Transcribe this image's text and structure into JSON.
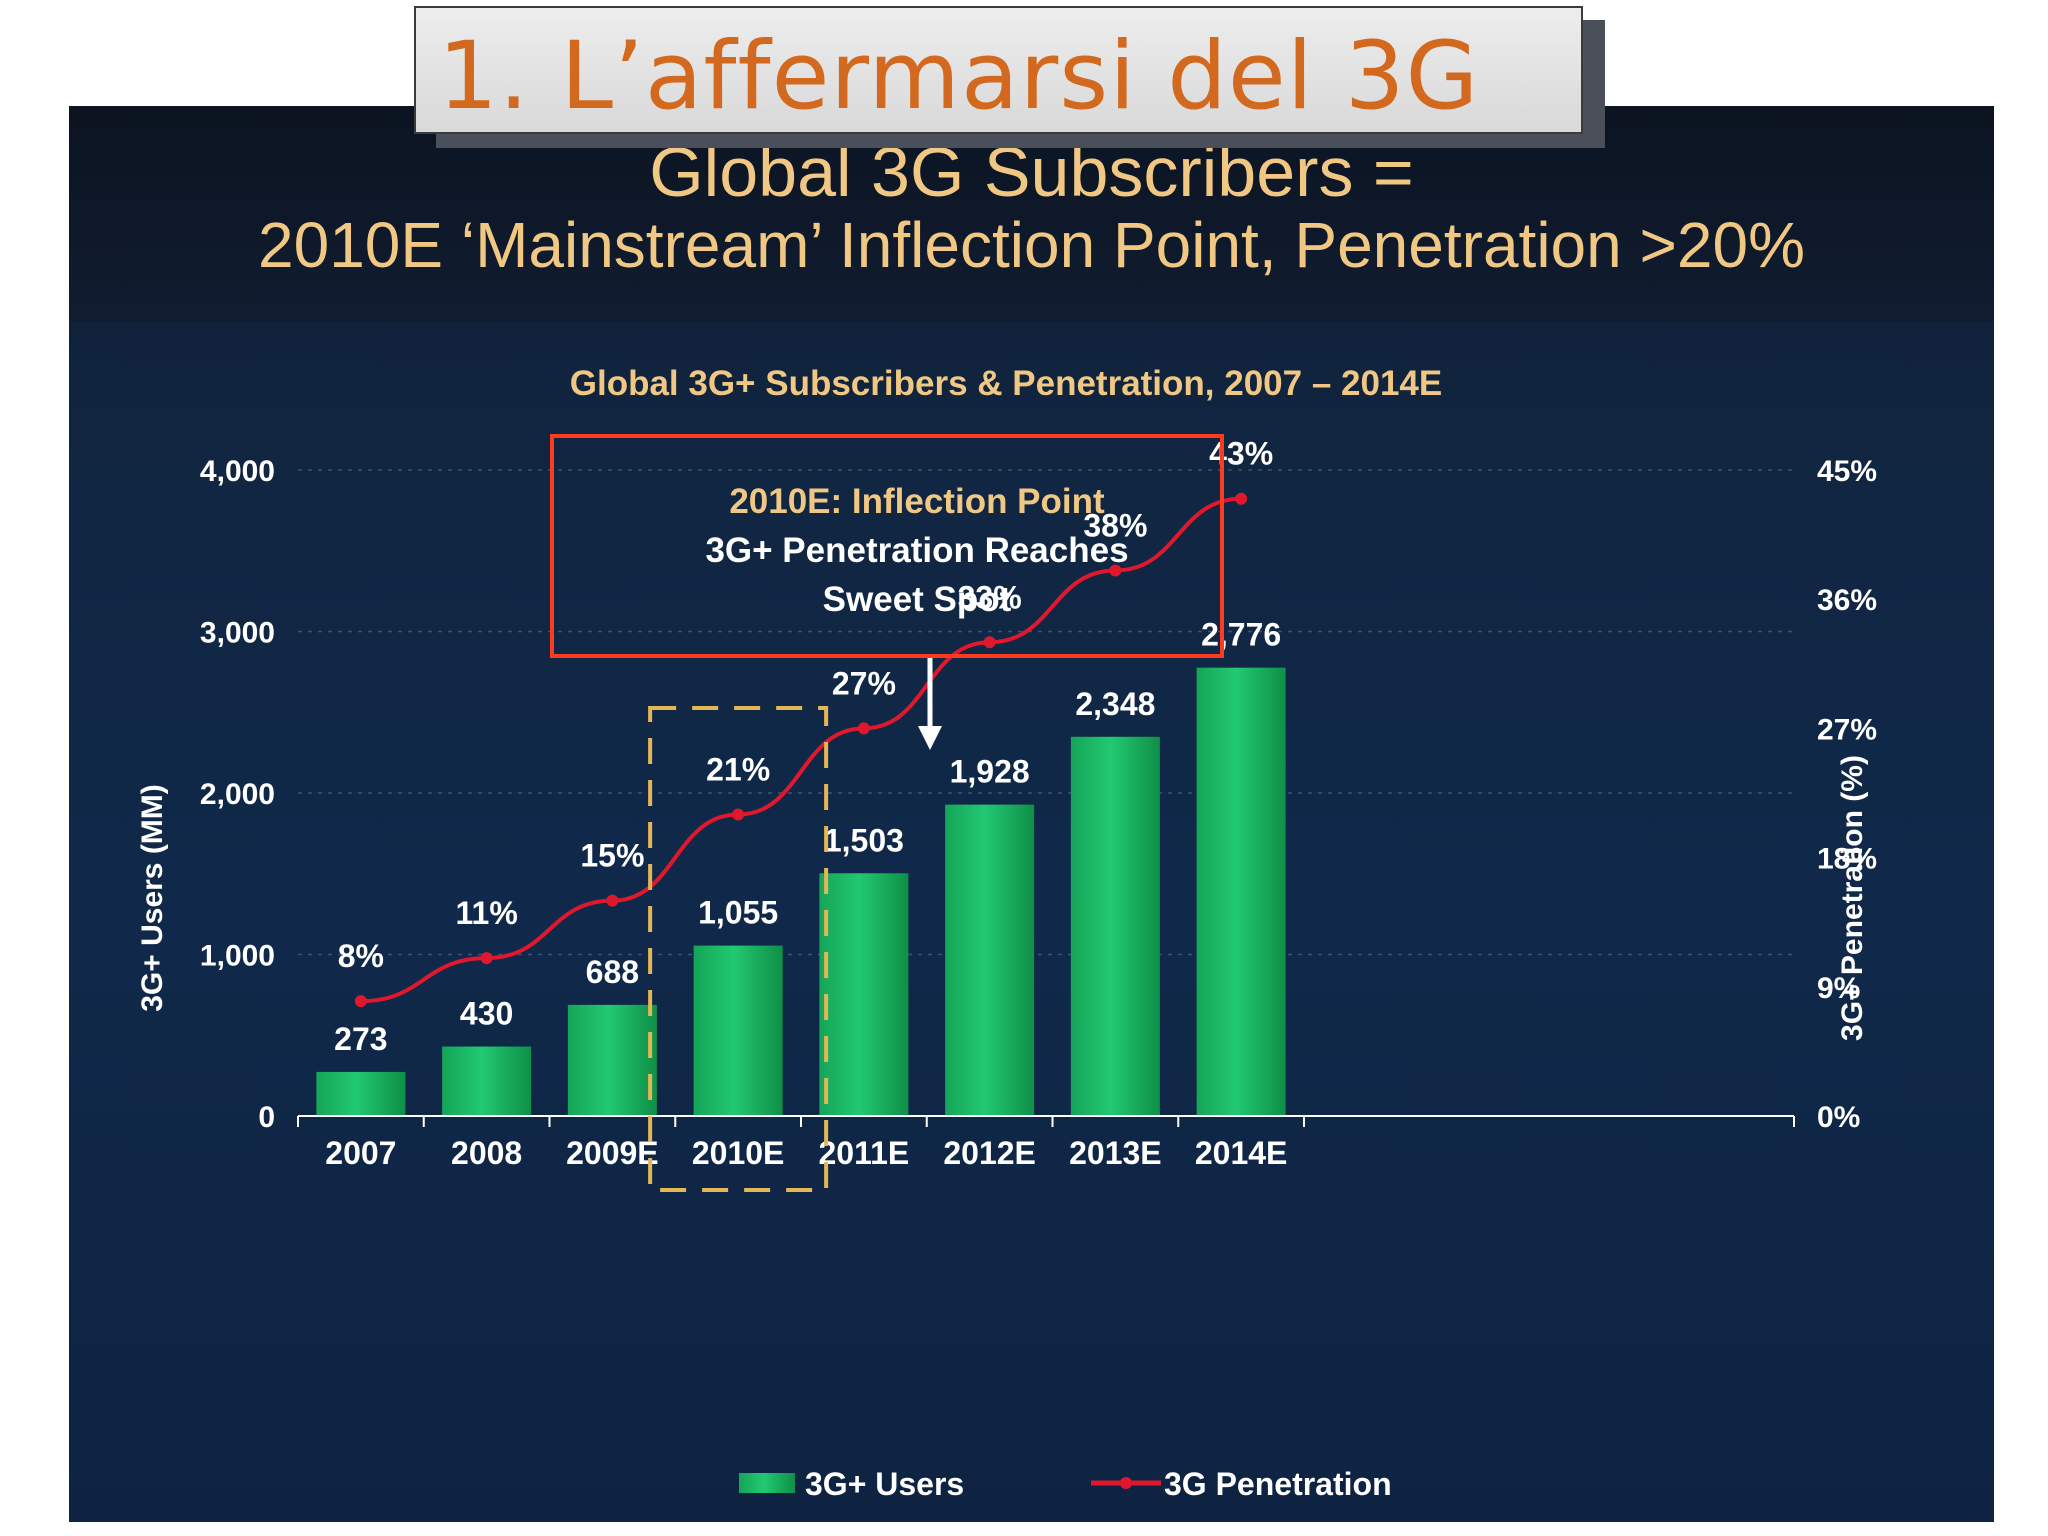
{
  "slide_title": "1. L’affermarsi del 3G",
  "headline": {
    "line1": "Global 3G Subscribers =",
    "line2": "2010E ‘Mainstream’ Inflection Point, Penetration >20%"
  },
  "callout": {
    "line1": "2010E: Inflection Point",
    "line2": "3G+ Penetration Reaches",
    "line3": "Sweet Spot"
  },
  "colors": {
    "bar": "#1fb866",
    "line": "#e0182d",
    "title_text": "#f1c883",
    "callout_border": "#ff3b1f",
    "highlight_dash": "#e6b654",
    "slide_title": "#d2691e"
  },
  "chart_data": {
    "type": "bar",
    "title": "Global 3G+ Subscribers & Penetration, 2007 – 2014E",
    "categories": [
      "2007",
      "2008",
      "2009E",
      "2010E",
      "2011E",
      "2012E",
      "2013E",
      "2014E"
    ],
    "series": [
      {
        "name": "3G+ Users",
        "type": "bar",
        "axis": "left",
        "values": [
          273,
          430,
          688,
          1055,
          1503,
          1928,
          2348,
          2776
        ],
        "labels": [
          "273",
          "430",
          "688",
          "1,055",
          "1,503",
          "1,928",
          "2,348",
          "2,776"
        ]
      },
      {
        "name": "3G Penetration",
        "type": "line",
        "axis": "right",
        "values": [
          8,
          11,
          15,
          21,
          27,
          33,
          38,
          43
        ],
        "labels": [
          "8%",
          "11%",
          "15%",
          "21%",
          "27%",
          "33%",
          "38%",
          "43%"
        ]
      }
    ],
    "ylabel": "3G+ Users (MM)",
    "ylim": [
      0,
      4000
    ],
    "yticks": [
      "0",
      "1,000",
      "2,000",
      "3,000",
      "4,000"
    ],
    "y2label": "3G+ Penetration (%)",
    "y2lim": [
      0,
      45
    ],
    "y2ticks": [
      "0%",
      "9%",
      "18%",
      "27%",
      "36%",
      "45%"
    ],
    "grid": true,
    "legend": "bottom-center",
    "highlight_category": "2010E"
  }
}
